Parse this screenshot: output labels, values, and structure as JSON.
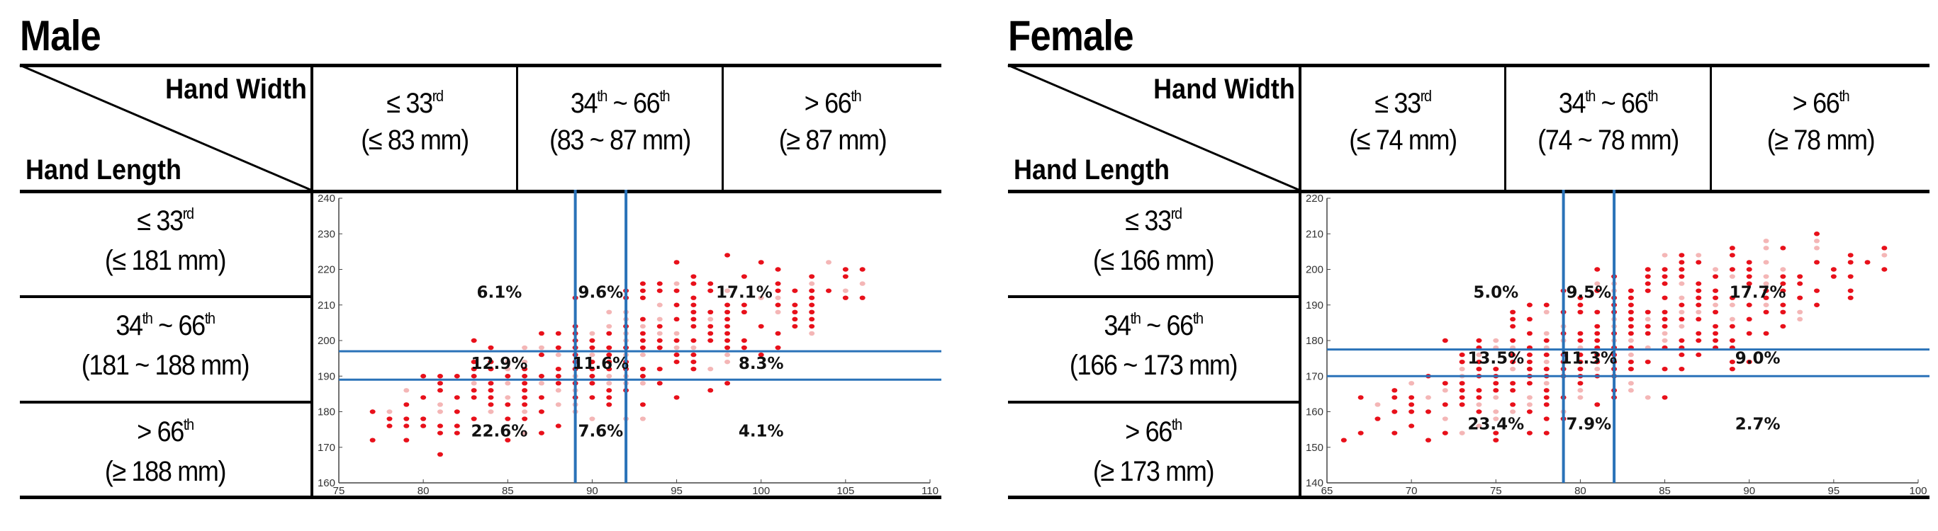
{
  "header": {
    "col_axis": "Hand Width",
    "row_axis": "Hand Length"
  },
  "chart_data": [
    {
      "type": "scatter",
      "title": "Male",
      "width_columns": [
        {
          "pct_label": "≤ 33",
          "pct_sup": "rd",
          "range": "(≤ 83 mm)"
        },
        {
          "pct_label": "34",
          "pct_sup": "th",
          "pct_tail": " ~ 66",
          "pct_sup2": "th",
          "range": "(83 ~ 87 mm)"
        },
        {
          "pct_label": "> 66",
          "pct_sup": "th",
          "range": "(≥ 87 mm)"
        }
      ],
      "length_rows": [
        {
          "pct_label": "≤ 33",
          "pct_sup": "rd",
          "range": "(≤ 181 mm)"
        },
        {
          "pct_label": "34",
          "pct_sup": "th",
          "pct_tail": " ~ 66",
          "pct_sup2": "th",
          "range": "(181 ~ 188 mm)"
        },
        {
          "pct_label": "> 66",
          "pct_sup": "th",
          "range": "(≥ 188 mm)"
        }
      ],
      "xlim": [
        75,
        110
      ],
      "ylim": [
        160,
        240
      ],
      "xticks": [
        75,
        80,
        85,
        90,
        95,
        100,
        105,
        110
      ],
      "yticks": [
        160,
        170,
        180,
        190,
        200,
        210,
        220,
        230,
        240
      ],
      "vlines": [
        89,
        92
      ],
      "hlines": [
        189,
        197
      ],
      "cells": [
        {
          "x": 84.5,
          "y": 212,
          "label": "6.1%"
        },
        {
          "x": 90.5,
          "y": 212,
          "label": "9.6%"
        },
        {
          "x": 99,
          "y": 212,
          "label": "17.1%"
        },
        {
          "x": 84.5,
          "y": 192,
          "label": "12.9%"
        },
        {
          "x": 90.5,
          "y": 192,
          "label": "11.6%"
        },
        {
          "x": 100,
          "y": 192,
          "label": "8.3%"
        },
        {
          "x": 84.5,
          "y": 173,
          "label": "22.6%"
        },
        {
          "x": 90.5,
          "y": 173,
          "label": "7.6%"
        },
        {
          "x": 100,
          "y": 173,
          "label": "4.1%"
        }
      ],
      "cloud": {
        "x0": 77,
        "x1": 106,
        "yc0": 175,
        "slope": 1.45,
        "spread": 22,
        "xstep": 1,
        "ystep": 2
      },
      "colors": {
        "dot": "#e8101a",
        "band": "#f4b6b6",
        "line": "#2a72b8"
      }
    },
    {
      "type": "scatter",
      "title": "Female",
      "width_columns": [
        {
          "pct_label": "≤ 33",
          "pct_sup": "rd",
          "range": "(≤ 74 mm)"
        },
        {
          "pct_label": "34",
          "pct_sup": "th",
          "pct_tail": " ~ 66",
          "pct_sup2": "th",
          "range": "(74 ~ 78 mm)"
        },
        {
          "pct_label": "> 66",
          "pct_sup": "th",
          "range": "(≥ 78 mm)"
        }
      ],
      "length_rows": [
        {
          "pct_label": "≤ 33",
          "pct_sup": "rd",
          "range": "(≤ 166 mm)"
        },
        {
          "pct_label": "34",
          "pct_sup": "th",
          "pct_tail": " ~ 66",
          "pct_sup2": "th",
          "range": "(166 ~ 173 mm)"
        },
        {
          "pct_label": "> 66",
          "pct_sup": "th",
          "range": "(≥ 173 mm)"
        }
      ],
      "xlim": [
        65,
        100
      ],
      "ylim": [
        140,
        220
      ],
      "xticks": [
        65,
        70,
        75,
        80,
        85,
        90,
        95,
        100
      ],
      "yticks": [
        140,
        150,
        160,
        170,
        180,
        190,
        200,
        210,
        220
      ],
      "vlines": [
        79,
        82
      ],
      "hlines": [
        170,
        177.5
      ],
      "cells": [
        {
          "x": 75,
          "y": 192,
          "label": "5.0%"
        },
        {
          "x": 80.5,
          "y": 192,
          "label": "9.5%"
        },
        {
          "x": 90.5,
          "y": 192,
          "label": "17.7%"
        },
        {
          "x": 75,
          "y": 173.5,
          "label": "13.5%"
        },
        {
          "x": 80.5,
          "y": 173.5,
          "label": "11.3%"
        },
        {
          "x": 90.5,
          "y": 173.5,
          "label": "9.0%"
        },
        {
          "x": 75,
          "y": 155,
          "label": "23.4%"
        },
        {
          "x": 80.5,
          "y": 155,
          "label": "7.9%"
        },
        {
          "x": 90.5,
          "y": 155,
          "label": "2.7%"
        }
      ],
      "cloud": {
        "x0": 66,
        "x1": 98,
        "yc0": 157,
        "slope": 1.45,
        "spread": 22,
        "xstep": 1,
        "ystep": 2
      },
      "colors": {
        "dot": "#e8101a",
        "band": "#f4b6b6",
        "line": "#2a72b8"
      }
    }
  ]
}
